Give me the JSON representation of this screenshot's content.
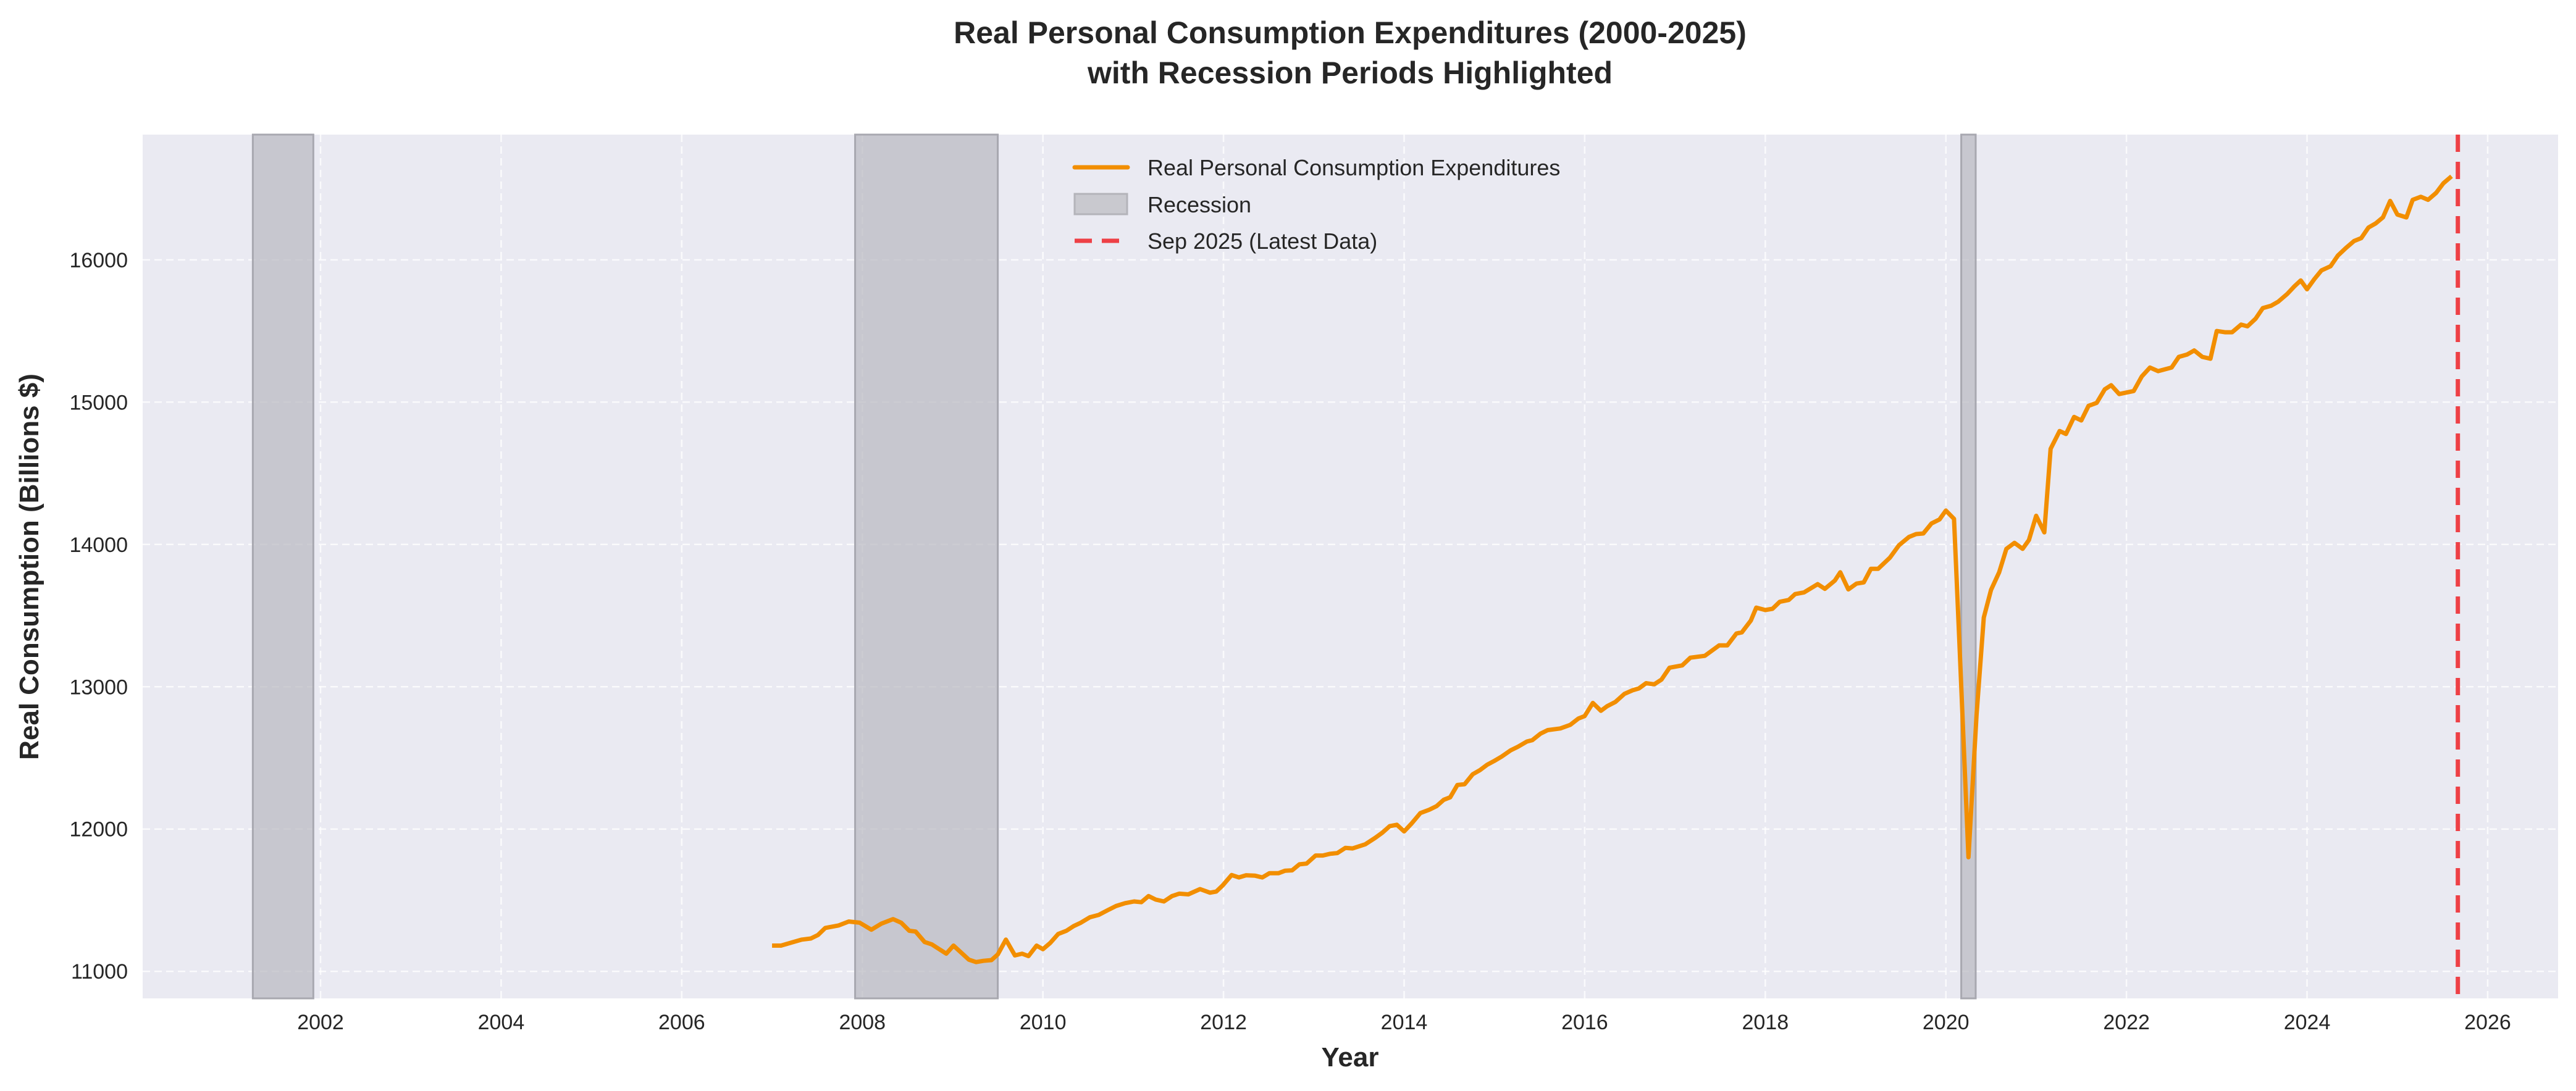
{
  "chart_data": {
    "type": "line",
    "title": "Real Personal Consumption Expenditures (2000-2025)",
    "subtitle": "with Recession Periods Highlighted",
    "xlabel": "Year",
    "ylabel": "Real Consumption (Billions $)",
    "xlim": [
      2000.03,
      2026.78
    ],
    "ylim": [
      10810,
      16880
    ],
    "xticks": [
      2002,
      2004,
      2006,
      2008,
      2010,
      2012,
      2014,
      2016,
      2018,
      2020,
      2022,
      2024,
      2026
    ],
    "yticks": [
      11000,
      12000,
      13000,
      14000,
      15000,
      16000
    ],
    "grid": true,
    "legend_position": "upper-center",
    "colors": {
      "line": "#F28E00",
      "recession": "#B8B8C0",
      "latest": "#EE4046",
      "background": "#EAEAF2"
    },
    "series": [
      {
        "name": "Real Personal Consumption Expenditures",
        "x": [
          2007.0,
          2007.1,
          2007.22,
          2007.33,
          2007.43,
          2007.51,
          2007.59,
          2007.74,
          2007.85,
          2007.97,
          2008.1,
          2008.21,
          2008.34,
          2008.43,
          2008.52,
          2008.59,
          2008.69,
          2008.77,
          2008.93,
          2009.01,
          2009.18,
          2009.26,
          2009.34,
          2009.43,
          2009.5,
          2009.59,
          2009.69,
          2009.77,
          2009.84,
          2009.93,
          2010.0,
          2010.08,
          2010.17,
          2010.26,
          2010.34,
          2010.42,
          2010.52,
          2010.62,
          2010.73,
          2010.81,
          2010.91,
          2011.01,
          2011.09,
          2011.17,
          2011.25,
          2011.34,
          2011.43,
          2011.51,
          2011.61,
          2011.74,
          2011.85,
          2011.92,
          2011.99,
          2012.09,
          2012.17,
          2012.25,
          2012.35,
          2012.43,
          2012.51,
          2012.61,
          2012.68,
          2012.76,
          2012.84,
          2012.92,
          2013.02,
          2013.1,
          2013.18,
          2013.26,
          2013.35,
          2013.43,
          2013.57,
          2013.68,
          2013.76,
          2013.84,
          2013.92,
          2014.0,
          2014.08,
          2014.18,
          2014.28,
          2014.36,
          2014.44,
          2014.51,
          2014.59,
          2014.67,
          2014.76,
          2014.84,
          2014.92,
          2015.0,
          2015.08,
          2015.18,
          2015.26,
          2015.36,
          2015.42,
          2015.51,
          2015.59,
          2015.73,
          2015.84,
          2015.93,
          2016.0,
          2016.09,
          2016.18,
          2016.25,
          2016.34,
          2016.44,
          2016.53,
          2016.6,
          2016.68,
          2016.77,
          2016.85,
          2016.94,
          2017.08,
          2017.17,
          2017.33,
          2017.49,
          2017.58,
          2017.68,
          2017.74,
          2017.84,
          2017.9,
          2018.0,
          2018.08,
          2018.16,
          2018.26,
          2018.33,
          2018.43,
          2018.58,
          2018.66,
          2018.77,
          2018.83,
          2018.92,
          2019.01,
          2019.09,
          2019.17,
          2019.25,
          2019.38,
          2019.48,
          2019.59,
          2019.67,
          2019.75,
          2019.84,
          2019.93,
          2020.0,
          2020.09,
          2020.15,
          2020.25,
          2020.34,
          2020.42,
          2020.5,
          2020.59,
          2020.67,
          2020.76,
          2020.85,
          2020.92,
          2021.0,
          2021.09,
          2021.16,
          2021.26,
          2021.33,
          2021.42,
          2021.5,
          2021.58,
          2021.67,
          2021.76,
          2021.83,
          2021.92,
          2022.08,
          2022.17,
          2022.26,
          2022.35,
          2022.5,
          2022.58,
          2022.67,
          2022.75,
          2022.84,
          2022.93,
          2023.0,
          2023.09,
          2023.17,
          2023.27,
          2023.34,
          2023.43,
          2023.51,
          2023.6,
          2023.68,
          2023.78,
          2023.86,
          2023.93,
          2024.0,
          2024.08,
          2024.16,
          2024.26,
          2024.34,
          2024.43,
          2024.52,
          2024.6,
          2024.68,
          2024.76,
          2024.84,
          2024.92,
          2025.0,
          2025.1,
          2025.17,
          2025.26,
          2025.34,
          2025.43,
          2025.51,
          2025.6
        ],
        "y": [
          11181,
          11181,
          11203,
          11223,
          11231,
          11256,
          11305,
          11323,
          11350,
          11342,
          11293,
          11335,
          11367,
          11342,
          11285,
          11280,
          11206,
          11189,
          11124,
          11181,
          11082,
          11065,
          11074,
          11079,
          11119,
          11223,
          11112,
          11124,
          11107,
          11181,
          11156,
          11199,
          11263,
          11285,
          11318,
          11342,
          11380,
          11397,
          11434,
          11459,
          11479,
          11491,
          11486,
          11529,
          11504,
          11491,
          11529,
          11546,
          11541,
          11578,
          11553,
          11561,
          11603,
          11677,
          11660,
          11675,
          11672,
          11660,
          11690,
          11690,
          11707,
          11710,
          11752,
          11757,
          11814,
          11814,
          11826,
          11831,
          11868,
          11864,
          11893,
          11938,
          11975,
          12020,
          12030,
          11983,
          12037,
          12112,
          12136,
          12161,
          12206,
          12223,
          12310,
          12315,
          12385,
          12414,
          12452,
          12479,
          12509,
          12553,
          12578,
          12615,
          12625,
          12670,
          12695,
          12707,
          12732,
          12777,
          12794,
          12886,
          12831,
          12864,
          12893,
          12950,
          12975,
          12988,
          13025,
          13017,
          13050,
          13134,
          13150,
          13204,
          13217,
          13291,
          13291,
          13374,
          13382,
          13465,
          13556,
          13539,
          13548,
          13597,
          13610,
          13651,
          13663,
          13721,
          13688,
          13746,
          13804,
          13684,
          13725,
          13733,
          13829,
          13829,
          13907,
          13994,
          14052,
          14073,
          14077,
          14147,
          14176,
          14238,
          14180,
          13300,
          11802,
          12803,
          13486,
          13680,
          13804,
          13969,
          14011,
          13969,
          14031,
          14201,
          14085,
          14672,
          14797,
          14776,
          14896,
          14871,
          14974,
          14995,
          15090,
          15119,
          15057,
          15078,
          15181,
          15243,
          15218,
          15243,
          15318,
          15334,
          15363,
          15318,
          15305,
          15500,
          15491,
          15491,
          15545,
          15533,
          15586,
          15661,
          15677,
          15706,
          15760,
          15814,
          15855,
          15793,
          15864,
          15926,
          15955,
          16029,
          16083,
          16132,
          16153,
          16227,
          16256,
          16298,
          16414,
          16318,
          16298,
          16422,
          16443,
          16422,
          16471,
          16538,
          16587
        ]
      }
    ],
    "recessions": [
      [
        2001.25,
        2001.92
      ],
      [
        2007.92,
        2009.5
      ],
      [
        2020.17,
        2020.33
      ]
    ],
    "latest_marker": {
      "x": 2025.67,
      "label": "Sep 2025 (Latest Data)"
    },
    "legend": [
      "Real Personal Consumption Expenditures",
      "Recession",
      "Sep 2025 (Latest Data)"
    ]
  }
}
